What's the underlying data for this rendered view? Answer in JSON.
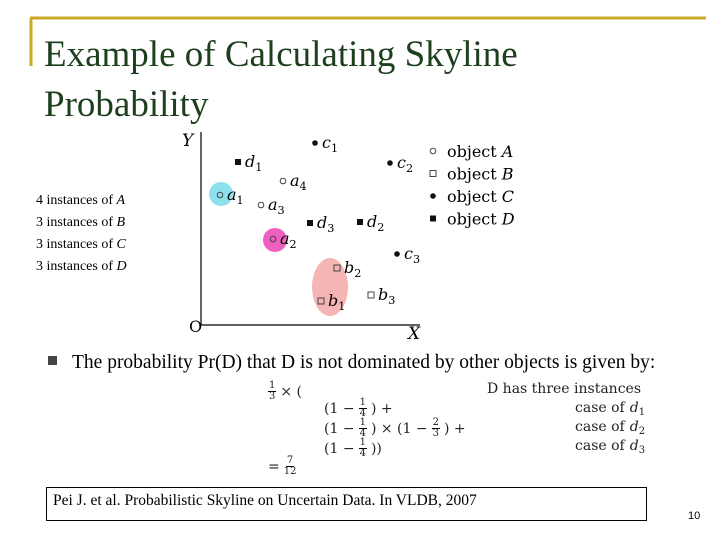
{
  "slide": {
    "title": "Example of Calculating Skyline Probability",
    "instances": [
      {
        "text": "4 instances of",
        "object": "A"
      },
      {
        "text": "3 instances of",
        "object": "B"
      },
      {
        "text": "3 instances of",
        "object": "C"
      },
      {
        "text": "3 instances of",
        "object": "D"
      }
    ],
    "figure": {
      "y_axis": "Y",
      "x_axis": "X",
      "origin": "O",
      "points": [
        {
          "letter": "c",
          "index": "1",
          "marker": "dot"
        },
        {
          "letter": "d",
          "index": "1",
          "marker": "square"
        },
        {
          "letter": "c",
          "index": "2",
          "marker": "dot"
        },
        {
          "letter": "a",
          "index": "4",
          "marker": "circle"
        },
        {
          "letter": "a",
          "index": "1",
          "marker": "circle"
        },
        {
          "letter": "a",
          "index": "3",
          "marker": "circle"
        },
        {
          "letter": "d",
          "index": "3",
          "marker": "square"
        },
        {
          "letter": "d",
          "index": "2",
          "marker": "square"
        },
        {
          "letter": "a",
          "index": "2",
          "marker": "circle"
        },
        {
          "letter": "c",
          "index": "3",
          "marker": "dot"
        },
        {
          "letter": "b",
          "index": "2",
          "marker": "open-square"
        },
        {
          "letter": "b",
          "index": "1",
          "marker": "open-square"
        },
        {
          "letter": "b",
          "index": "3",
          "marker": "open-square"
        }
      ],
      "legend": [
        {
          "text": "object",
          "object": "A",
          "marker": "circle"
        },
        {
          "text": "object",
          "object": "B",
          "marker": "open-square"
        },
        {
          "text": "object",
          "object": "C",
          "marker": "dot"
        },
        {
          "text": "object",
          "object": "D",
          "marker": "square"
        }
      ]
    },
    "bullet": "The probability Pr(D) that D is not dominated by other objects is given by:",
    "formula": {
      "lead": [
        {
          "num": "1",
          "den": "3"
        },
        {
          "text": "× ("
        }
      ],
      "lines": [
        [
          {
            "text": "(1 −"
          },
          {
            "num": "1",
            "den": "4"
          },
          {
            "text": ") +"
          }
        ],
        [
          {
            "text": "(1 −"
          },
          {
            "num": "1",
            "den": "4"
          },
          {
            "text": ") × (1 −"
          },
          {
            "num": "2",
            "den": "3"
          },
          {
            "text": ") +"
          }
        ],
        [
          {
            "text": "(1 −"
          },
          {
            "num": "1",
            "den": "4"
          },
          {
            "text": "))"
          }
        ]
      ],
      "result": [
        {
          "text": "="
        },
        {
          "num": "7",
          "den": "12"
        }
      ],
      "note": "D has three instances",
      "cases": [
        {
          "text": "case of",
          "letter": "d",
          "index": "1"
        },
        {
          "text": "case of",
          "letter": "d",
          "index": "2"
        },
        {
          "text": "case of",
          "letter": "d",
          "index": "3"
        }
      ]
    },
    "citation": "Pei J. et al. Probabilistic Skyline on Uncertain Data. In VLDB, 2007",
    "page_number": "10"
  }
}
